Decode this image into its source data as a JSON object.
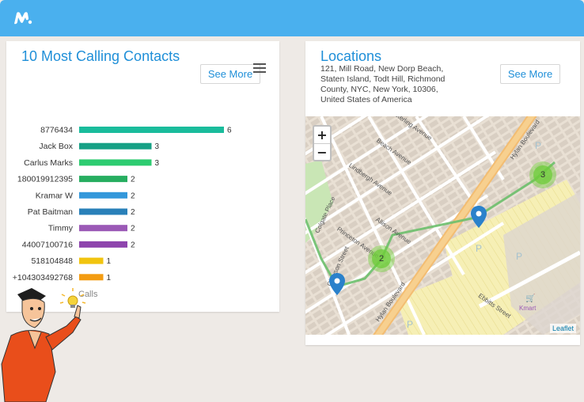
{
  "header": {
    "logo_icon": "mobikin-m-logo-icon",
    "brand_color": "#4ab0ee"
  },
  "contacts_card": {
    "title": "10 Most Calling Contacts",
    "see_more_label": "See More",
    "menu_icon": "hamburger-menu-icon"
  },
  "chart_data": {
    "type": "bar",
    "orientation": "horizontal",
    "categories": [
      "8776434",
      "Jack Box",
      "Carlus Marks",
      "180019912395",
      "Kramar W",
      "Pat Baitman",
      "Timmy",
      "44007100716",
      "518104848",
      "+104303492768"
    ],
    "values": [
      6,
      3,
      3,
      2,
      2,
      2,
      2,
      2,
      1,
      1
    ],
    "colors": [
      "#1abc9c",
      "#16a085",
      "#2ecc71",
      "#27ae60",
      "#3498db",
      "#2980b9",
      "#9b59b6",
      "#8e44ad",
      "#f1c40f",
      "#f39c12"
    ],
    "legend_label": "Calls",
    "xlim": [
      0,
      6
    ]
  },
  "locations_card": {
    "title": "Locations",
    "address": "121, Mill Road, New Dorp Beach, Staten Island, Todt Hill, Richmond County, NYC, New York, 10306, United States of America",
    "see_more_label": "See More"
  },
  "map": {
    "zoom_in_label": "+",
    "zoom_out_label": "−",
    "attribution": "Leaflet",
    "street_labels": [
      "Sterling Avenue",
      "Beach Avenue",
      "Lindbergh Avenue",
      "Hylan Boulevard",
      "Allison Avenue",
      "Princeton Avenue",
      "Clawson Street",
      "Colgate Place",
      "Ebbitts Street",
      "Hylan Boulevard",
      "Kmart",
      "P",
      "P",
      "P",
      "P"
    ],
    "clusters": [
      "3",
      "2"
    ],
    "route_color": "#6cbf6c",
    "road_color": "#f6c079"
  },
  "mascot": {
    "name": "cartoon-man-pointing"
  }
}
